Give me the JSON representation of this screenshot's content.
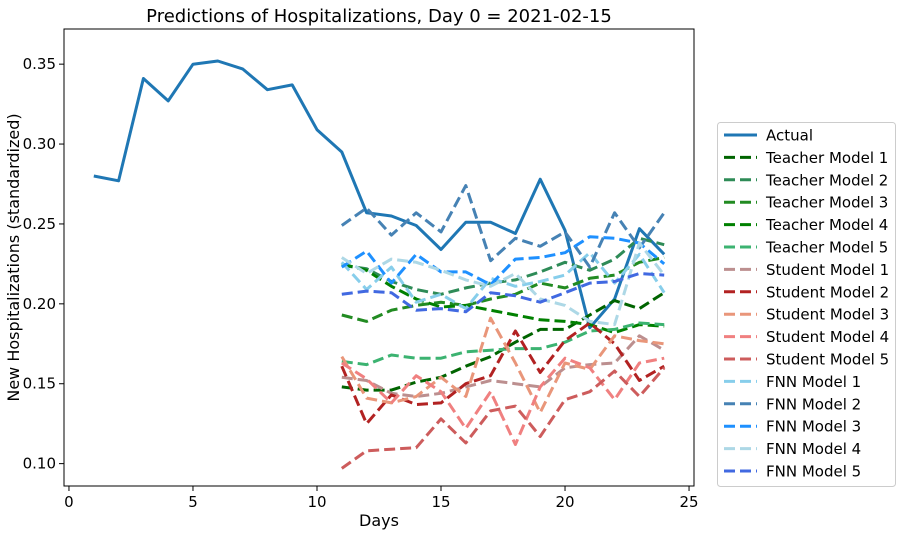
{
  "chart_data": {
    "type": "line",
    "title": "Predictions of Hospitalizations, Day 0 = 2021-02-15",
    "xlabel": "Days",
    "ylabel": "New Hospitalizations (standardized)",
    "xlim": [
      -0.2,
      25.2
    ],
    "ylim": [
      0.086,
      0.372
    ],
    "xticks": [
      0,
      5,
      10,
      15,
      20,
      25
    ],
    "xtick_labels": [
      "0",
      "5",
      "10",
      "15",
      "20",
      "25"
    ],
    "yticks": [
      0.1,
      0.15,
      0.2,
      0.25,
      0.3,
      0.35
    ],
    "ytick_labels": [
      "0.10",
      "0.15",
      "0.20",
      "0.25",
      "0.30",
      "0.35"
    ],
    "grid": false,
    "legend_position": "outside-right",
    "series": [
      {
        "name": "Actual",
        "color": "#1f77b4",
        "style": "solid",
        "x": [
          1,
          2,
          3,
          4,
          5,
          6,
          7,
          8,
          9,
          10,
          11,
          12,
          13,
          14,
          15,
          16,
          17,
          18,
          19,
          20,
          21,
          22,
          23,
          24
        ],
        "y": [
          0.28,
          0.277,
          0.341,
          0.327,
          0.35,
          0.352,
          0.347,
          0.334,
          0.337,
          0.309,
          0.295,
          0.257,
          0.255,
          0.249,
          0.234,
          0.251,
          0.251,
          0.244,
          0.278,
          0.246,
          0.185,
          0.203,
          0.247,
          0.231
        ]
      },
      {
        "name": "Teacher Model 1",
        "color": "#006400",
        "style": "dashed",
        "x": [
          11,
          12,
          13,
          14,
          15,
          16,
          17,
          18,
          19,
          20,
          21,
          22,
          23,
          24
        ],
        "y": [
          0.148,
          0.146,
          0.146,
          0.151,
          0.154,
          0.161,
          0.167,
          0.176,
          0.184,
          0.184,
          0.193,
          0.202,
          0.197,
          0.207
        ]
      },
      {
        "name": "Teacher Model 2",
        "color": "#2e8b57",
        "style": "dashed",
        "x": [
          11,
          12,
          13,
          14,
          15,
          16,
          17,
          18,
          19,
          20,
          21,
          22,
          23,
          24
        ],
        "y": [
          0.224,
          0.222,
          0.214,
          0.209,
          0.206,
          0.21,
          0.213,
          0.215,
          0.22,
          0.226,
          0.221,
          0.228,
          0.241,
          0.237
        ]
      },
      {
        "name": "Teacher Model 3",
        "color": "#228b22",
        "style": "dashed",
        "x": [
          11,
          12,
          13,
          14,
          15,
          16,
          17,
          18,
          19,
          20,
          21,
          22,
          23,
          24
        ],
        "y": [
          0.193,
          0.189,
          0.196,
          0.199,
          0.201,
          0.199,
          0.203,
          0.206,
          0.213,
          0.21,
          0.216,
          0.218,
          0.226,
          0.229
        ]
      },
      {
        "name": "Teacher Model 4",
        "color": "#008000",
        "style": "dashed",
        "x": [
          11,
          12,
          13,
          14,
          15,
          16,
          17,
          18,
          19,
          20,
          21,
          22,
          23,
          24
        ],
        "y": [
          0.225,
          0.221,
          0.211,
          0.203,
          0.198,
          0.199,
          0.196,
          0.193,
          0.19,
          0.189,
          0.187,
          0.182,
          0.187,
          0.186
        ]
      },
      {
        "name": "Teacher Model 5",
        "color": "#3cb371",
        "style": "dashed",
        "x": [
          11,
          12,
          13,
          14,
          15,
          16,
          17,
          18,
          19,
          20,
          21,
          22,
          23,
          24
        ],
        "y": [
          0.164,
          0.162,
          0.168,
          0.166,
          0.166,
          0.17,
          0.171,
          0.172,
          0.172,
          0.176,
          0.183,
          0.184,
          0.188,
          0.187
        ]
      },
      {
        "name": "Student Model 1",
        "color": "#bc8f8f",
        "style": "dashed",
        "x": [
          11,
          12,
          13,
          14,
          15,
          16,
          17,
          18,
          19,
          20,
          21,
          22,
          23,
          24
        ],
        "y": [
          0.154,
          0.152,
          0.144,
          0.142,
          0.144,
          0.148,
          0.152,
          0.15,
          0.148,
          0.16,
          0.162,
          0.163,
          0.18,
          0.171
        ]
      },
      {
        "name": "Student Model 2",
        "color": "#b22222",
        "style": "dashed",
        "x": [
          11,
          12,
          13,
          14,
          15,
          16,
          17,
          18,
          19,
          20,
          21,
          22,
          23,
          24
        ],
        "y": [
          0.161,
          0.125,
          0.143,
          0.137,
          0.138,
          0.15,
          0.155,
          0.183,
          0.157,
          0.177,
          0.188,
          0.175,
          0.152,
          0.161
        ]
      },
      {
        "name": "Student Model 3",
        "color": "#e9967a",
        "style": "dashed",
        "x": [
          11,
          12,
          13,
          14,
          15,
          16,
          17,
          18,
          19,
          20,
          21,
          22,
          23,
          24
        ],
        "y": [
          0.167,
          0.141,
          0.138,
          0.142,
          0.154,
          0.142,
          0.191,
          0.163,
          0.132,
          0.163,
          0.159,
          0.18,
          0.177,
          0.175
        ]
      },
      {
        "name": "Student Model 4",
        "color": "#f08080",
        "style": "dashed",
        "x": [
          11,
          12,
          13,
          14,
          15,
          16,
          17,
          18,
          19,
          20,
          21,
          22,
          23,
          24
        ],
        "y": [
          0.163,
          0.153,
          0.138,
          0.155,
          0.145,
          0.122,
          0.145,
          0.112,
          0.148,
          0.166,
          0.16,
          0.14,
          0.163,
          0.166
        ]
      },
      {
        "name": "Student Model 5",
        "color": "#cd5c5c",
        "style": "dashed",
        "x": [
          11,
          12,
          13,
          14,
          15,
          16,
          17,
          18,
          19,
          20,
          21,
          22,
          23,
          24
        ],
        "y": [
          0.097,
          0.108,
          0.109,
          0.11,
          0.128,
          0.113,
          0.133,
          0.136,
          0.117,
          0.14,
          0.145,
          0.158,
          0.142,
          0.16
        ]
      },
      {
        "name": "FNN Model 1",
        "color": "#87ceeb",
        "style": "dashed",
        "x": [
          11,
          12,
          13,
          14,
          15,
          16,
          17,
          18,
          19,
          20,
          21,
          22,
          23,
          24
        ],
        "y": [
          0.226,
          0.209,
          0.223,
          0.201,
          0.206,
          0.197,
          0.216,
          0.211,
          0.214,
          0.218,
          0.232,
          0.213,
          0.231,
          0.207
        ]
      },
      {
        "name": "FNN Model 2",
        "color": "#4682b4",
        "style": "dashed",
        "x": [
          11,
          12,
          13,
          14,
          15,
          16,
          17,
          18,
          19,
          20,
          21,
          22,
          23,
          24
        ],
        "y": [
          0.249,
          0.26,
          0.243,
          0.257,
          0.245,
          0.274,
          0.227,
          0.241,
          0.236,
          0.245,
          0.223,
          0.257,
          0.235,
          0.257
        ]
      },
      {
        "name": "FNN Model 3",
        "color": "#1e90ff",
        "style": "dashed",
        "x": [
          11,
          12,
          13,
          14,
          15,
          16,
          17,
          18,
          19,
          20,
          21,
          22,
          23,
          24
        ],
        "y": [
          0.223,
          0.233,
          0.213,
          0.231,
          0.22,
          0.22,
          0.212,
          0.228,
          0.229,
          0.232,
          0.242,
          0.241,
          0.238,
          0.225
        ]
      },
      {
        "name": "FNN Model 4",
        "color": "#add8e6",
        "style": "dashed",
        "x": [
          11,
          12,
          13,
          14,
          15,
          16,
          17,
          18,
          19,
          20,
          21,
          22,
          23,
          24
        ],
        "y": [
          0.229,
          0.219,
          0.228,
          0.226,
          0.221,
          0.215,
          0.211,
          0.219,
          0.203,
          0.199,
          0.189,
          0.187,
          0.238,
          0.218
        ]
      },
      {
        "name": "FNN Model 5",
        "color": "#4169e1",
        "style": "dashed",
        "x": [
          11,
          12,
          13,
          14,
          15,
          16,
          17,
          18,
          19,
          20,
          21,
          22,
          23,
          24
        ],
        "y": [
          0.206,
          0.208,
          0.207,
          0.196,
          0.197,
          0.195,
          0.207,
          0.205,
          0.201,
          0.207,
          0.213,
          0.214,
          0.219,
          0.218
        ]
      }
    ]
  }
}
